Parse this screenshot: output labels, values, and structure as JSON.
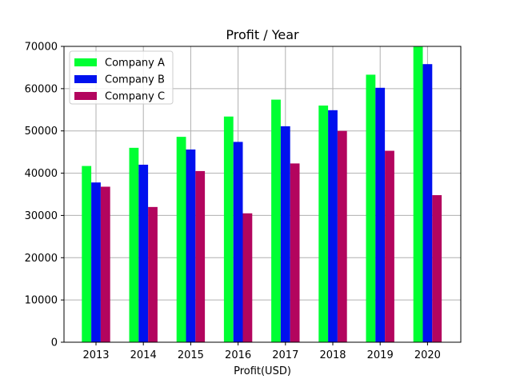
{
  "chart_data": {
    "type": "bar",
    "title": "Profit / Year",
    "xlabel": "Profit(USD)",
    "ylabel": "",
    "categories": [
      "2013",
      "2014",
      "2015",
      "2016",
      "2017",
      "2018",
      "2019",
      "2020"
    ],
    "series": [
      {
        "name": "Company A",
        "color": "#00ff33",
        "values": [
          41700,
          46000,
          48600,
          53400,
          57400,
          56000,
          63300,
          69900
        ]
      },
      {
        "name": "Company B",
        "color": "#0011ee",
        "values": [
          37800,
          42000,
          45600,
          47400,
          51100,
          54900,
          60200,
          65800
        ]
      },
      {
        "name": "Company C",
        "color": "#b3055e",
        "values": [
          36800,
          32000,
          40500,
          30500,
          42300,
          50000,
          45300,
          34800
        ]
      }
    ],
    "ylim": [
      0,
      70000
    ],
    "yticks": [
      "0",
      "10000",
      "20000",
      "30000",
      "40000",
      "50000",
      "60000",
      "70000"
    ],
    "grid": true,
    "legend_position": "top-left"
  }
}
